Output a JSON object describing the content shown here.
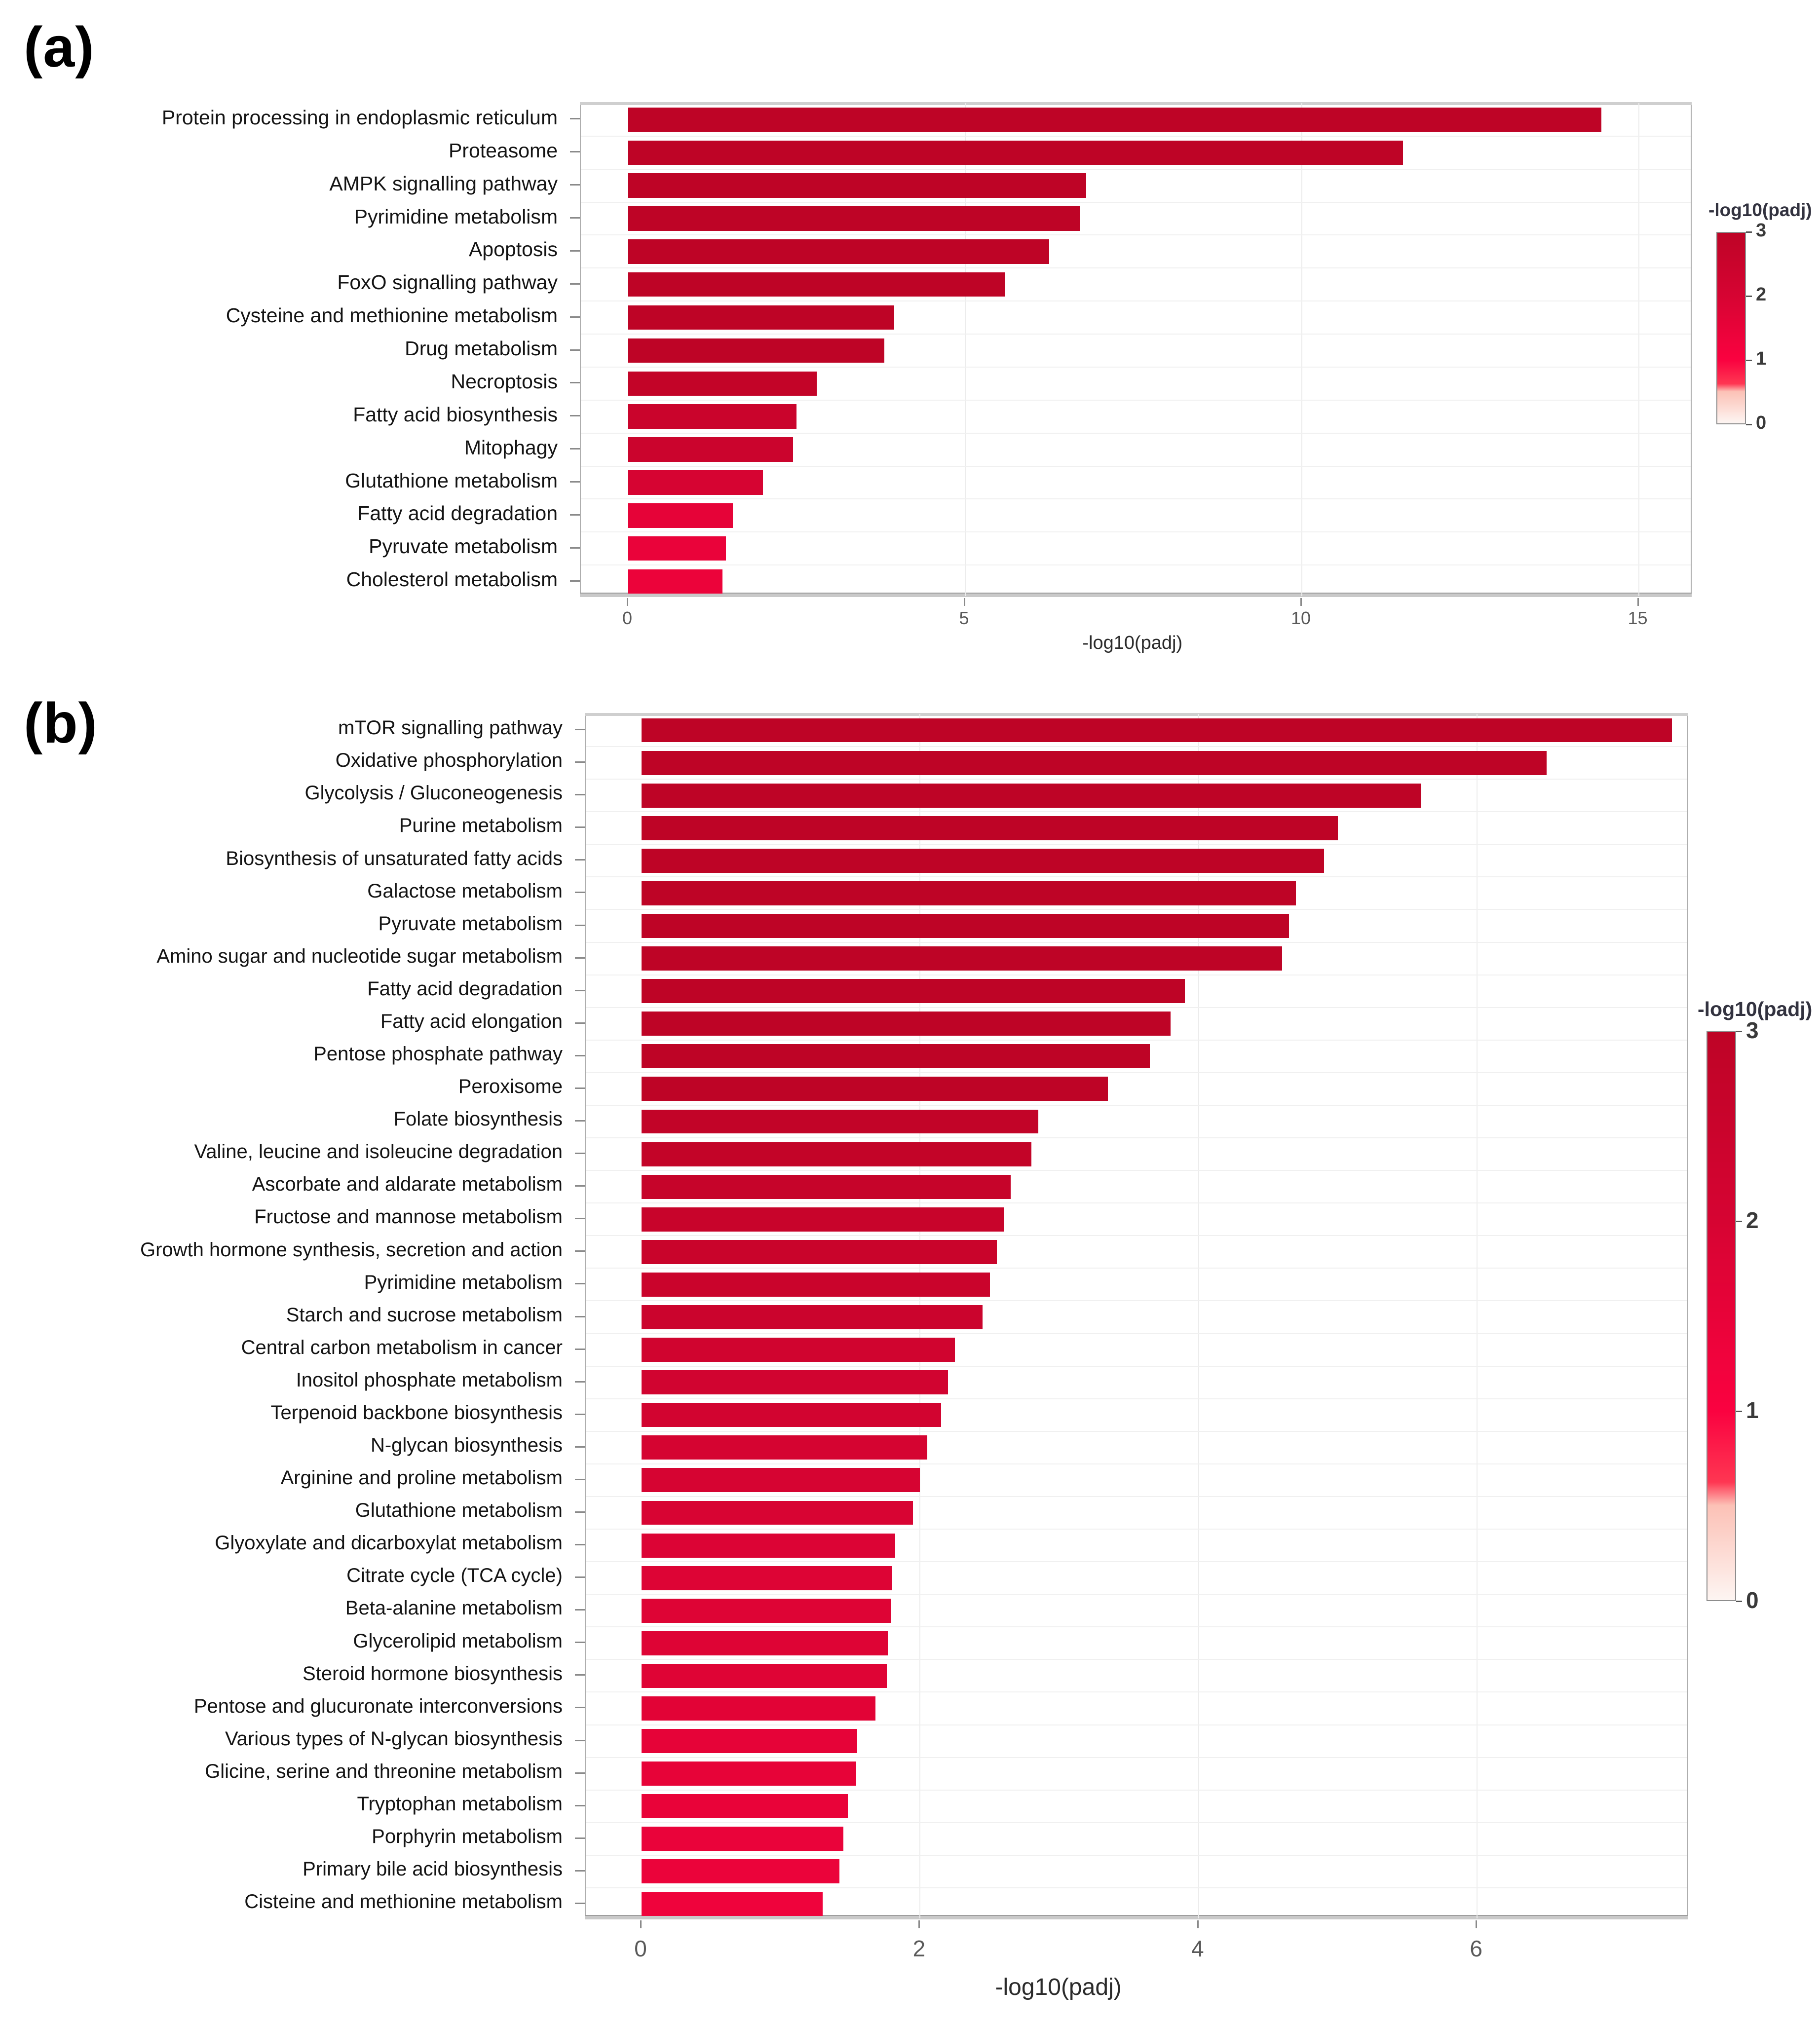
{
  "panels": [
    {
      "label": "(a)"
    },
    {
      "label": "(b)"
    }
  ],
  "chart_data": [
    {
      "type": "bar",
      "orientation": "horizontal",
      "panel_label": "(a)",
      "xlabel": "-log10(padj)",
      "categories": [
        "Protein processing in endoplasmic reticulum",
        "Proteasome",
        "AMPK signalling pathway",
        "Pyrimidine metabolism",
        "Apoptosis",
        "FoxO signalling pathway",
        "Cysteine and methionine metabolism",
        "Drug metabolism",
        "Necroptosis",
        "Fatty acid biosynthesis",
        "Mitophagy",
        "Glutathione metabolism",
        "Fatty acid degradation",
        "Pyruvate metabolism",
        "Cholesterol metabolism"
      ],
      "values": [
        14.45,
        11.5,
        6.8,
        6.7,
        6.25,
        5.6,
        3.95,
        3.8,
        2.8,
        2.5,
        2.45,
        2.0,
        1.55,
        1.45,
        1.4
      ],
      "xticks": [
        0,
        5,
        10,
        15
      ],
      "xlim": [
        0,
        15.8
      ],
      "grid": true,
      "legend": {
        "title": "-log10(padj)",
        "ticks": [
          3,
          2,
          1,
          0
        ],
        "range": [
          0,
          3
        ],
        "position": "right",
        "colors": {
          "high": "#be0426",
          "mid2": "#d60432",
          "mid1": "#fa0240",
          "zero": "#fdf5f2"
        }
      }
    },
    {
      "type": "bar",
      "orientation": "horizontal",
      "panel_label": "(b)",
      "xlabel": "-log10(padj)",
      "categories": [
        "mTOR signalling pathway",
        "Oxidative phosphorylation",
        "Glycolysis / Gluconeogenesis",
        "Purine metabolism",
        "Biosynthesis of unsaturated fatty acids",
        "Galactose metabolism",
        "Pyruvate metabolism",
        "Amino sugar and nucleotide sugar metabolism",
        "Fatty acid degradation",
        "Fatty acid elongation",
        "Pentose phosphate pathway",
        "Peroxisome",
        "Folate biosynthesis",
        "Valine, leucine and isoleucine degradation",
        "Ascorbate and aldarate metabolism",
        "Fructose and mannose metabolism",
        "Growth hormone synthesis, secretion and action",
        "Pyrimidine metabolism",
        "Starch and sucrose metabolism",
        "Central carbon metabolism in cancer",
        "Inositol phosphate metabolism",
        "Terpenoid backbone biosynthesis",
        "N-glycan biosynthesis",
        "Arginine and proline metabolism",
        "Glutathione metabolism",
        "Glyoxylate and dicarboxylat metabolism",
        "Citrate cycle (TCA cycle)",
        "Beta-alanine metabolism",
        "Glycerolipid metabolism",
        "Steroid hormone biosynthesis",
        "Pentose and glucuronate interconversions",
        "Various types of N-glycan biosynthesis",
        "Glicine, serine and threonine metabolism",
        "Tryptophan metabolism",
        "Porphyrin metabolism",
        "Primary bile acid biosynthesis",
        "Cisteine and methionine metabolism"
      ],
      "values": [
        7.4,
        6.5,
        5.6,
        5.0,
        4.9,
        4.7,
        4.65,
        4.6,
        3.9,
        3.8,
        3.65,
        3.35,
        2.85,
        2.8,
        2.65,
        2.6,
        2.55,
        2.5,
        2.45,
        2.25,
        2.2,
        2.15,
        2.05,
        2.0,
        1.95,
        1.82,
        1.8,
        1.79,
        1.77,
        1.76,
        1.68,
        1.55,
        1.54,
        1.48,
        1.45,
        1.42,
        1.3
      ],
      "xticks": [
        0,
        2,
        4,
        6
      ],
      "xlim": [
        0,
        7.5
      ],
      "grid": true,
      "legend": {
        "title": "-log10(padj)",
        "ticks": [
          3,
          2,
          1,
          0
        ],
        "range": [
          0,
          3
        ],
        "position": "right",
        "colors": {
          "high": "#be0426",
          "mid2": "#d60432",
          "mid1": "#fa0240",
          "zero": "#fdf5f2"
        }
      }
    }
  ]
}
